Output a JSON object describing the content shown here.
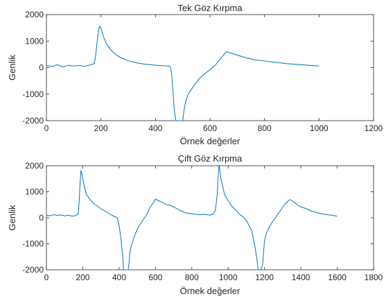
{
  "figure": {
    "background": "#ffffff",
    "line_color": "#0072BD",
    "axis_color": "#262626"
  },
  "chart_data": [
    {
      "type": "line",
      "title": "Tek Göz Kırpma",
      "xlabel": "Örnek değerler",
      "ylabel": "Genlik",
      "xlim": [
        0,
        1200
      ],
      "ylim": [
        -2000,
        2000
      ],
      "xticks": [
        0,
        200,
        400,
        600,
        800,
        1000,
        1200
      ],
      "yticks": [
        -2000,
        -1000,
        0,
        1000,
        2000
      ],
      "grid": false,
      "series": [
        {
          "color": "#0072BD",
          "x": [
            0,
            20,
            40,
            60,
            80,
            100,
            120,
            140,
            160,
            175,
            180,
            185,
            190,
            195,
            200,
            210,
            220,
            240,
            260,
            280,
            300,
            330,
            360,
            400,
            430,
            450,
            455,
            460,
            465,
            470,
            475,
            480,
            490,
            500,
            505,
            510,
            520,
            540,
            560,
            580,
            600,
            620,
            640,
            660,
            680,
            700,
            730,
            760,
            800,
            840,
            880,
            920,
            960,
            1000
          ],
          "y": [
            80,
            40,
            110,
            30,
            90,
            60,
            80,
            50,
            100,
            150,
            400,
            900,
            1300,
            1560,
            1480,
            1150,
            900,
            620,
            450,
            340,
            260,
            180,
            130,
            90,
            70,
            60,
            20,
            -300,
            -1000,
            -1700,
            -2000,
            -2000,
            -2000,
            -2000,
            -1600,
            -1300,
            -1000,
            -700,
            -420,
            -240,
            -80,
            100,
            350,
            600,
            540,
            470,
            380,
            300,
            250,
            200,
            150,
            120,
            90,
            60
          ]
        }
      ]
    },
    {
      "type": "line",
      "title": "Çift Göz Kırpma",
      "xlabel": "Örnek değerler",
      "ylabel": "Genlik",
      "xlim": [
        0,
        1800
      ],
      "ylim": [
        -2000,
        2000
      ],
      "xticks": [
        0,
        200,
        400,
        600,
        800,
        1000,
        1200,
        1400,
        1600,
        1800
      ],
      "yticks": [
        -2000,
        -1000,
        0,
        1000,
        2000
      ],
      "grid": false,
      "series": [
        {
          "color": "#0072BD",
          "x": [
            0,
            20,
            40,
            60,
            80,
            100,
            120,
            140,
            160,
            175,
            180,
            185,
            190,
            195,
            200,
            210,
            220,
            240,
            260,
            280,
            300,
            330,
            360,
            390,
            400,
            410,
            420,
            425,
            430,
            440,
            450,
            455,
            460,
            470,
            490,
            510,
            530,
            550,
            570,
            590,
            600,
            620,
            640,
            660,
            680,
            700,
            730,
            760,
            800,
            840,
            870,
            900,
            920,
            930,
            940,
            945,
            950,
            955,
            960,
            970,
            980,
            1000,
            1020,
            1040,
            1060,
            1080,
            1100,
            1130,
            1150,
            1160,
            1165,
            1170,
            1175,
            1180,
            1190,
            1195,
            1200,
            1210,
            1230,
            1250,
            1270,
            1290,
            1310,
            1330,
            1340,
            1360,
            1380,
            1400,
            1430,
            1460,
            1500,
            1540,
            1570,
            1600
          ],
          "y": [
            100,
            80,
            120,
            90,
            110,
            70,
            100,
            60,
            80,
            150,
            600,
            1300,
            1820,
            1700,
            1500,
            1150,
            900,
            700,
            550,
            450,
            350,
            220,
            100,
            0,
            -300,
            -800,
            -1500,
            -2000,
            -2000,
            -2000,
            -2000,
            -1700,
            -1300,
            -1000,
            -600,
            -300,
            -100,
            100,
            400,
            600,
            720,
            650,
            580,
            500,
            480,
            420,
            300,
            200,
            150,
            120,
            130,
            100,
            150,
            300,
            900,
            1600,
            2050,
            1800,
            1500,
            1200,
            900,
            650,
            450,
            300,
            150,
            50,
            -100,
            -500,
            -1200,
            -1700,
            -2000,
            -2000,
            -2000,
            -2000,
            -1800,
            -1300,
            -900,
            -600,
            -300,
            -100,
            100,
            300,
            500,
            650,
            700,
            620,
            500,
            420,
            350,
            250,
            180,
            120,
            100,
            60
          ]
        }
      ]
    }
  ]
}
